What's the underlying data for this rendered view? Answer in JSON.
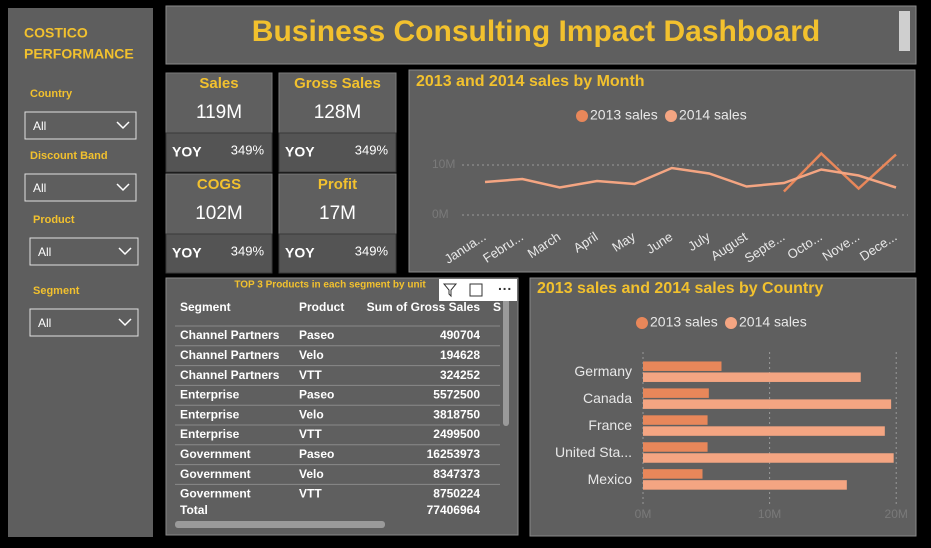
{
  "sidebar": {
    "title_lines": [
      "COSTICO",
      "PERFORMANCE"
    ],
    "filters": [
      {
        "label": "Country",
        "value": "All"
      },
      {
        "label": "Discount Band",
        "value": "All"
      },
      {
        "label": "Product",
        "value": "All"
      },
      {
        "label": "Segment",
        "value": "All"
      }
    ]
  },
  "header": {
    "title": "Business Consulting Impact Dashboard"
  },
  "kpis": [
    {
      "label": "Sales",
      "value": "119M",
      "yoy_label": "YOY",
      "yoy": "349%"
    },
    {
      "label": "Gross Sales",
      "value": "128M",
      "yoy_label": "YOY",
      "yoy": "349%"
    },
    {
      "label": "COGS",
      "value": "102M",
      "yoy_label": "YOY",
      "yoy": "349%"
    },
    {
      "label": "Profit",
      "value": "17M",
      "yoy_label": "YOY",
      "yoy": "349%"
    }
  ],
  "table": {
    "title": "TOP 3 Products in each segment by unit",
    "columns": [
      "Segment",
      "Product",
      "Sum of Gross Sales",
      "S"
    ],
    "rows": [
      [
        "Channel Partners",
        "Paseo",
        490704
      ],
      [
        "Channel Partners",
        "Velo",
        194628
      ],
      [
        "Channel Partners",
        "VTT",
        324252
      ],
      [
        "Enterprise",
        "Paseo",
        5572500
      ],
      [
        "Enterprise",
        "Velo",
        3818750
      ],
      [
        "Enterprise",
        "VTT",
        2499500
      ],
      [
        "Government",
        "Paseo",
        16253973
      ],
      [
        "Government",
        "Velo",
        8347373
      ],
      [
        "Government",
        "VTT",
        8750224
      ]
    ],
    "total": [
      "Total",
      77406964
    ]
  },
  "chart_data": [
    {
      "type": "line",
      "title": "2013 and 2014 sales by Month",
      "categories": [
        "Janua...",
        "Febru...",
        "March",
        "April",
        "May",
        "June",
        "July",
        "August",
        "Septe...",
        "Octo...",
        "Nove...",
        "Dece..."
      ],
      "series": [
        {
          "name": "2013 sales",
          "color": "#e8875a",
          "values": [
            null,
            null,
            null,
            null,
            null,
            null,
            null,
            null,
            4.7,
            12.3,
            5.3,
            12.1
          ]
        },
        {
          "name": "2014 sales",
          "color": "#f4a582",
          "values": [
            6.6,
            7.2,
            5.5,
            6.8,
            6.2,
            9.4,
            8.3,
            5.7,
            6.4,
            9.1,
            7.9,
            5.5
          ]
        }
      ],
      "ylim": [
        0,
        14
      ],
      "yticks": [
        {
          "value": 0,
          "label": "0M"
        },
        {
          "value": 10,
          "label": "10M"
        }
      ],
      "grid": true,
      "legend": "top"
    },
    {
      "type": "bar",
      "orientation": "horizontal",
      "title": "2013 sales and 2014 sales by Country",
      "categories": [
        "Germany",
        "Canada",
        "France",
        "United Sta...",
        "Mexico"
      ],
      "series": [
        {
          "name": "2013 sales",
          "color": "#e8875a",
          "values": [
            6.2,
            5.2,
            5.1,
            5.1,
            4.7
          ]
        },
        {
          "name": "2014 sales",
          "color": "#f4a582",
          "values": [
            17.2,
            19.6,
            19.1,
            19.8,
            16.1
          ]
        }
      ],
      "xlim": [
        0,
        20.3
      ],
      "xticks": [
        {
          "value": 0,
          "label": "0M"
        },
        {
          "value": 10,
          "label": "10M"
        },
        {
          "value": 20,
          "label": "20M"
        }
      ],
      "grid": true,
      "legend": "top"
    }
  ]
}
